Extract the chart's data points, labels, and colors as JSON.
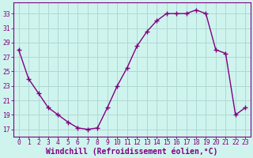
{
  "x": [
    0,
    1,
    2,
    3,
    4,
    5,
    6,
    7,
    8,
    9,
    10,
    11,
    12,
    13,
    14,
    15,
    16,
    17,
    18,
    19,
    20,
    21,
    22,
    23
  ],
  "y": [
    28,
    24,
    22,
    20,
    19,
    18,
    17.2,
    17,
    17.2,
    20,
    23,
    25.5,
    28.5,
    30.5,
    32,
    33,
    33,
    33,
    33.5,
    33,
    28,
    27.5,
    19,
    20
  ],
  "line_color": "#800080",
  "marker": "+",
  "marker_size": 4,
  "marker_linewidth": 1.0,
  "bg_color": "#cff4ee",
  "grid_color": "#b0d8d4",
  "xlabel": "Windchill (Refroidissement éolien,°C)",
  "xlabel_color": "#800080",
  "ylabel_ticks": [
    17,
    19,
    21,
    23,
    25,
    27,
    29,
    31,
    33
  ],
  "xticks": [
    0,
    1,
    2,
    3,
    4,
    5,
    6,
    7,
    8,
    9,
    10,
    11,
    12,
    13,
    14,
    15,
    16,
    17,
    18,
    19,
    20,
    21,
    22,
    23
  ],
  "ylim": [
    16.0,
    34.5
  ],
  "xlim": [
    -0.5,
    23.5
  ],
  "tick_color": "#800080",
  "tick_fontsize": 5.8,
  "xlabel_fontsize": 7.0,
  "spine_color": "#800080",
  "linewidth": 1.0
}
